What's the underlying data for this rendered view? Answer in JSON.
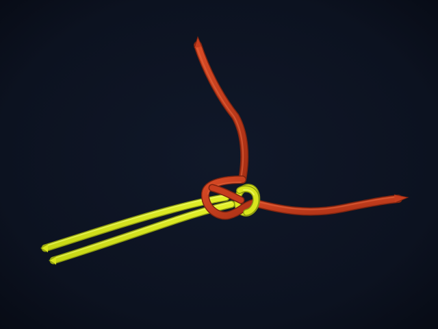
{
  "scene": {
    "subject": "knot-photo",
    "colors": {
      "background": "#0c1220",
      "background_edge": "#070b15",
      "red_rope": "#c63d1e",
      "red_rope_shadow": "#7e2410",
      "red_rope_highlight": "#e3663e",
      "yellow_rope": "#d9e61e",
      "yellow_rope_shadow": "#8d9a10",
      "yellow_rope_highlight": "#f3ff7a"
    },
    "elements": {
      "red_line": "red-rope",
      "yellow_line": "yellow-rope-pair",
      "knot": "loop-knot"
    }
  }
}
